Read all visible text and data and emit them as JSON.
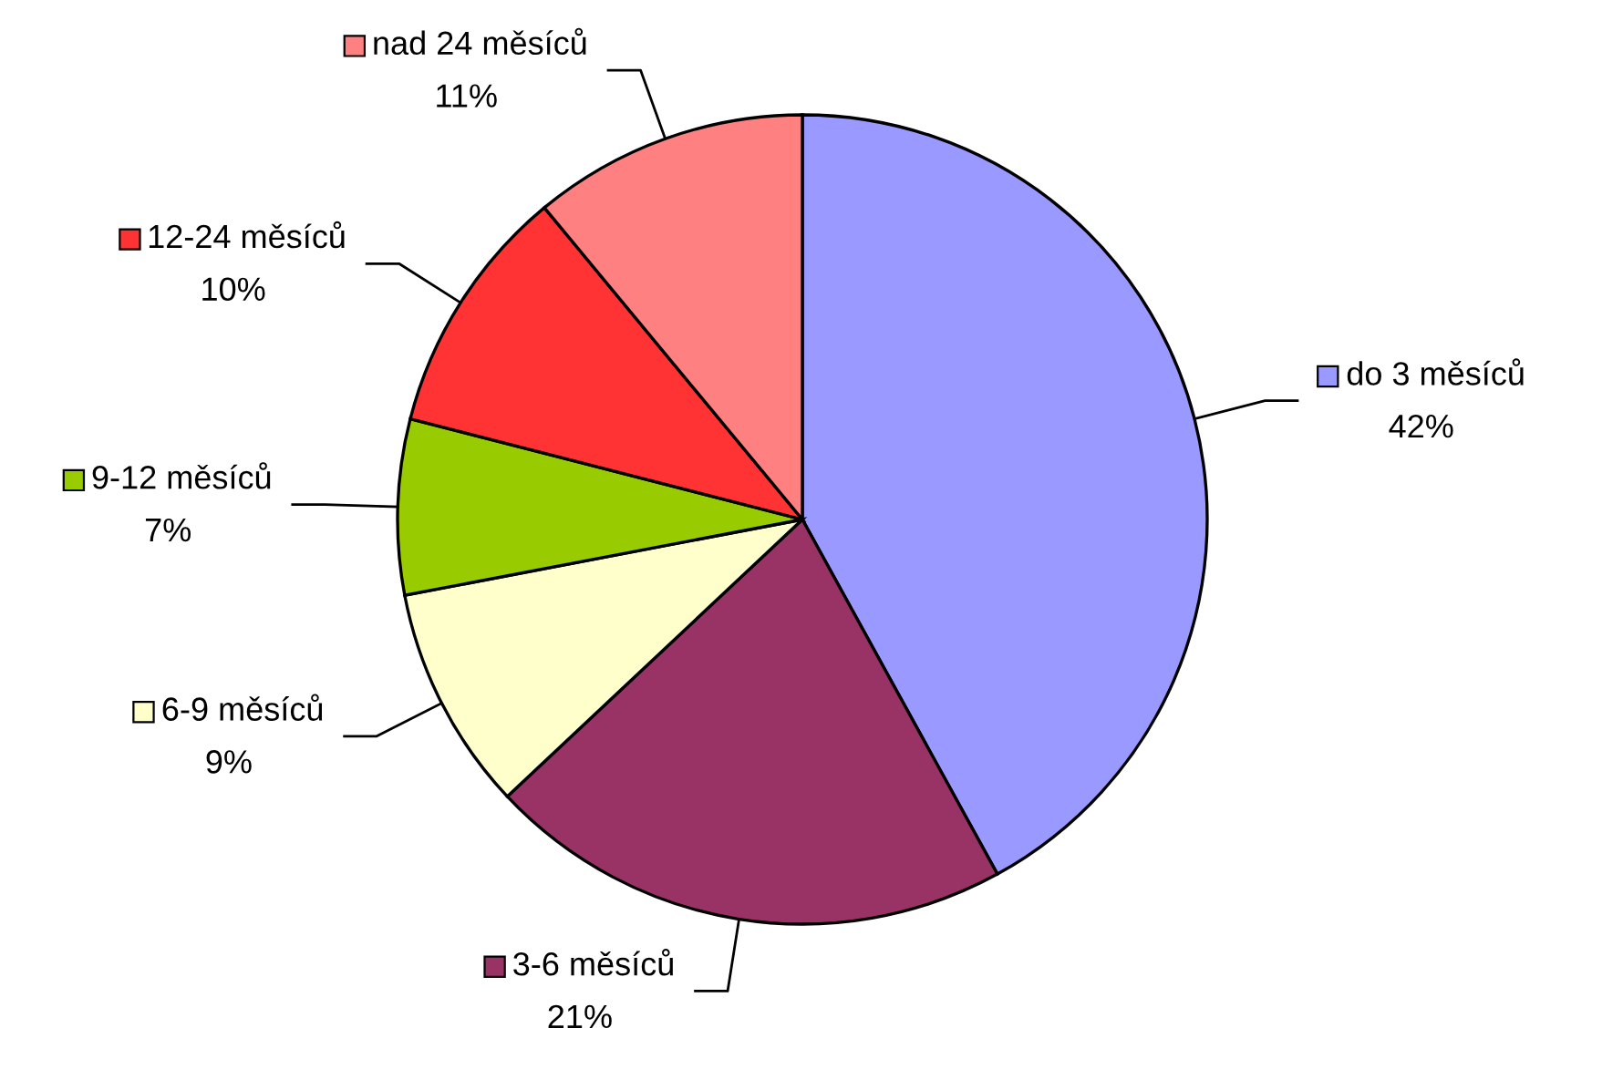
{
  "chart_data": {
    "type": "pie",
    "categories": [
      "do 3 měsíců",
      "3-6 měsíců",
      "6-9 měsíců",
      "9-12 měsíců",
      "12-24 měsíců",
      "nad 24 měsíců"
    ],
    "values": [
      42,
      21,
      9,
      7,
      10,
      11
    ],
    "colors": [
      "#9999ff",
      "#993366",
      "#ffffcc",
      "#99cc00",
      "#ff3333",
      "#ff8080"
    ],
    "value_labels": [
      "42%",
      "21%",
      "9%",
      "7%",
      "10%",
      "11%"
    ],
    "legend": true
  }
}
